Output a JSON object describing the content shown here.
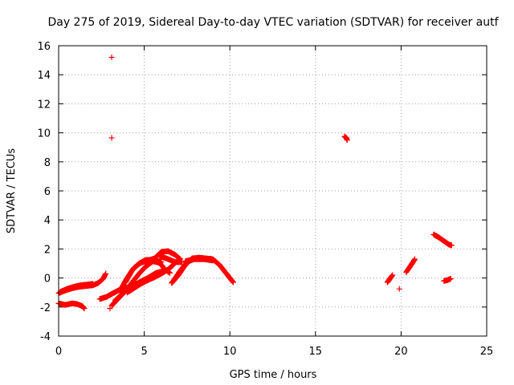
{
  "chart_data": {
    "type": "scatter",
    "title": "Day 275 of 2019, Sidereal Day-to-day VTEC variation (SDTVAR) for receiver autf",
    "xlabel": "GPS time / hours",
    "ylabel": "SDTVAR / TECUs",
    "xlim": [
      0,
      25
    ],
    "ylim": [
      -4,
      16
    ],
    "xticks": [
      0,
      5,
      10,
      15,
      20,
      25
    ],
    "yticks": [
      -4,
      -2,
      0,
      2,
      4,
      6,
      8,
      10,
      12,
      14,
      16
    ],
    "grid": true,
    "marker": "+",
    "color": "#ff0000",
    "series": [
      {
        "name": "SDTVAR",
        "tracks": [
          [
            [
              0.0,
              -1.05
            ],
            [
              0.4,
              -0.85
            ],
            [
              0.8,
              -0.7
            ],
            [
              1.2,
              -0.6
            ],
            [
              1.6,
              -0.55
            ],
            [
              2.0,
              -0.5
            ],
            [
              2.3,
              -0.35
            ],
            [
              2.6,
              -0.05
            ],
            [
              2.75,
              0.3
            ]
          ],
          [
            [
              0.1,
              -0.95
            ],
            [
              0.5,
              -0.75
            ],
            [
              0.9,
              -0.6
            ],
            [
              1.3,
              -0.5
            ],
            [
              1.7,
              -0.45
            ],
            [
              2.0,
              -0.4
            ]
          ],
          [
            [
              0.0,
              -1.75
            ],
            [
              0.4,
              -1.85
            ],
            [
              0.8,
              -1.75
            ],
            [
              1.1,
              -1.8
            ],
            [
              1.4,
              -1.95
            ],
            [
              1.5,
              -2.1
            ]
          ],
          [
            [
              2.4,
              -1.45
            ],
            [
              2.8,
              -1.3
            ],
            [
              3.1,
              -1.1
            ],
            [
              3.5,
              -0.85
            ],
            [
              4.0,
              -0.65
            ],
            [
              4.5,
              -0.45
            ],
            [
              5.0,
              -0.25
            ],
            [
              5.5,
              0.0
            ],
            [
              6.0,
              0.3
            ],
            [
              6.4,
              0.6
            ],
            [
              6.7,
              0.9
            ]
          ],
          [
            [
              3.1,
              -1.9
            ],
            [
              3.5,
              -1.4
            ],
            [
              3.9,
              -0.9
            ],
            [
              4.3,
              -0.3
            ],
            [
              4.7,
              0.3
            ],
            [
              5.1,
              0.8
            ],
            [
              5.5,
              1.15
            ],
            [
              5.9,
              1.05
            ],
            [
              6.2,
              0.6
            ],
            [
              6.5,
              0.35
            ]
          ],
          [
            [
              3.6,
              -0.85
            ],
            [
              4.0,
              0.0
            ],
            [
              4.4,
              0.7
            ],
            [
              4.8,
              1.05
            ],
            [
              5.2,
              1.2
            ],
            [
              5.6,
              1.35
            ],
            [
              6.0,
              1.8
            ],
            [
              6.4,
              1.85
            ],
            [
              6.8,
              1.6
            ],
            [
              7.1,
              1.3
            ]
          ],
          [
            [
              3.9,
              -0.3
            ],
            [
              4.3,
              0.55
            ],
            [
              4.7,
              1.0
            ],
            [
              5.1,
              1.25
            ],
            [
              5.5,
              1.25
            ],
            [
              6.0,
              1.1
            ]
          ],
          [
            [
              3.3,
              -1.55
            ],
            [
              3.7,
              -1.1
            ],
            [
              4.2,
              -0.65
            ],
            [
              4.7,
              -0.3
            ],
            [
              5.2,
              0.0
            ],
            [
              5.7,
              0.35
            ],
            [
              6.2,
              0.5
            ]
          ],
          [
            [
              4.0,
              -1.0
            ],
            [
              4.4,
              -0.7
            ],
            [
              4.8,
              -0.4
            ],
            [
              5.2,
              -0.15
            ],
            [
              5.6,
              0.15
            ],
            [
              6.0,
              0.4
            ]
          ],
          [
            [
              6.6,
              -0.35
            ],
            [
              7.0,
              0.2
            ],
            [
              7.4,
              0.9
            ],
            [
              7.8,
              1.35
            ],
            [
              8.2,
              1.4
            ],
            [
              8.6,
              1.35
            ],
            [
              9.0,
              1.3
            ],
            [
              9.4,
              0.9
            ],
            [
              9.8,
              0.3
            ],
            [
              10.2,
              -0.3
            ]
          ],
          [
            [
              6.7,
              -0.2
            ],
            [
              7.1,
              0.5
            ],
            [
              7.5,
              1.1
            ],
            [
              7.9,
              1.3
            ]
          ],
          [
            [
              7.4,
              1.15
            ],
            [
              7.9,
              1.3
            ],
            [
              8.5,
              1.3
            ],
            [
              9.0,
              1.2
            ]
          ],
          [
            [
              5.9,
              1.5
            ],
            [
              6.3,
              1.35
            ],
            [
              6.8,
              1.1
            ],
            [
              7.2,
              1.1
            ]
          ],
          [
            [
              16.7,
              9.75
            ],
            [
              16.8,
              9.65
            ],
            [
              16.85,
              9.5
            ]
          ],
          [
            [
              19.2,
              -0.3
            ],
            [
              19.35,
              -0.05
            ],
            [
              19.5,
              0.2
            ]
          ],
          [
            [
              20.3,
              0.4
            ],
            [
              20.5,
              0.75
            ],
            [
              20.7,
              1.1
            ],
            [
              20.8,
              1.3
            ]
          ],
          [
            [
              21.9,
              3.0
            ],
            [
              22.2,
              2.8
            ],
            [
              22.5,
              2.55
            ],
            [
              22.8,
              2.3
            ],
            [
              22.95,
              2.25
            ]
          ],
          [
            [
              22.5,
              -0.2
            ],
            [
              22.7,
              -0.15
            ],
            [
              22.9,
              -0.05
            ]
          ]
        ],
        "points": [
          [
            3.1,
            15.2
          ],
          [
            3.1,
            9.65
          ],
          [
            19.9,
            -0.75
          ],
          [
            3.0,
            -2.1
          ]
        ]
      }
    ]
  }
}
